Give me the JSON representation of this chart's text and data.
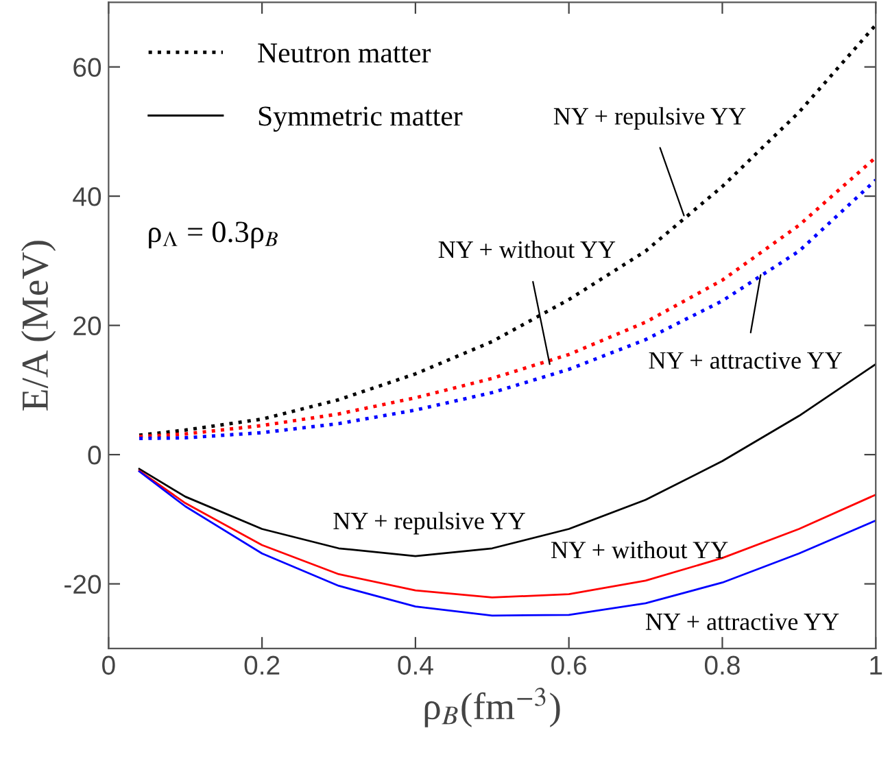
{
  "chart_data": {
    "type": "line",
    "xlabel": "ρ$_{B}$(fm$^{−3}$)",
    "ylabel": "E/A (MeV)",
    "xlim": [
      0,
      1
    ],
    "ylim": [
      -30,
      70
    ],
    "xticks": [
      0,
      0.2,
      0.4,
      0.6,
      0.8,
      1
    ],
    "yticks": [
      -20,
      0,
      20,
      40,
      60
    ],
    "grid": false,
    "legend": "top left",
    "marker": "none",
    "x": [
      0.04,
      0.1,
      0.2,
      0.3,
      0.4,
      0.5,
      0.6,
      0.7,
      0.8,
      0.9,
      1.0
    ],
    "series": [
      {
        "name": "Neutron matter",
        "color": "#000000",
        "line_style": "dotted",
        "values": [
          3,
          3.8,
          5.5,
          8.5,
          12.5,
          17.5,
          24,
          31.5,
          41.5,
          53,
          66.5
        ]
      },
      {
        "color": "#ff0000",
        "line_style": "dotted",
        "values": [
          2.8,
          3.2,
          4.5,
          6.3,
          8.8,
          11.8,
          15.5,
          20.5,
          27,
          35.5,
          46
        ]
      },
      {
        "color": "#0000ff",
        "line_style": "dotted",
        "values": [
          2.5,
          2.6,
          3.4,
          4.8,
          6.9,
          9.6,
          13.2,
          17.8,
          23.8,
          31.5,
          42.5
        ]
      },
      {
        "name": "Symmetric matter",
        "color": "#000000",
        "line_style": "solid",
        "values": [
          -2.2,
          -6.5,
          -11.5,
          -14.5,
          -15.7,
          -14.5,
          -11.5,
          -7,
          -1,
          6,
          14
        ]
      },
      {
        "color": "#ff0000",
        "line_style": "solid",
        "values": [
          -2.5,
          -7.5,
          -14,
          -18.5,
          -21,
          -22.1,
          -21.6,
          -19.5,
          -16,
          -11.5,
          -6.2
        ]
      },
      {
        "color": "#0000ff",
        "line_style": "solid",
        "values": [
          -2.6,
          -8,
          -15.3,
          -20.3,
          -23.5,
          -24.9,
          -24.8,
          -23,
          -19.8,
          -15.3,
          -10.2
        ]
      }
    ],
    "annotations": [
      {
        "text": "NY + repulsive YY",
        "x": 0.75,
        "y": 37
      },
      {
        "text": "NY + without YY",
        "x": 0.575,
        "y": 14
      },
      {
        "text": "NY + attractive YY",
        "x": 0.85,
        "y": 27.8
      },
      "NY + repulsive YY",
      "NY + without YY",
      "NY + attractive YY",
      "ρ$_{Λ}$ = 0.3ρ$_{B}$"
    ]
  }
}
